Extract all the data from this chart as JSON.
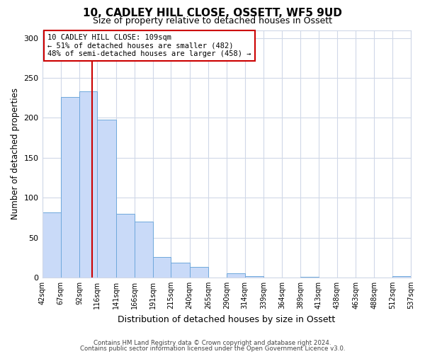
{
  "title": "10, CADLEY HILL CLOSE, OSSETT, WF5 9UD",
  "subtitle": "Size of property relative to detached houses in Ossett",
  "xlabel": "Distribution of detached houses by size in Ossett",
  "ylabel": "Number of detached properties",
  "bar_edges": [
    42,
    67,
    92,
    116,
    141,
    166,
    191,
    215,
    240,
    265,
    290,
    314,
    339,
    364,
    389,
    413,
    438,
    463,
    488,
    512,
    537
  ],
  "bar_heights": [
    82,
    226,
    233,
    198,
    80,
    70,
    26,
    19,
    13,
    0,
    5,
    2,
    0,
    0,
    1,
    0,
    0,
    0,
    0,
    2
  ],
  "bar_color": "#c9daf8",
  "bar_edge_color": "#6fa8dc",
  "property_line_x": 109,
  "property_line_color": "#cc0000",
  "annotation_line1": "10 CADLEY HILL CLOSE: 109sqm",
  "annotation_line2": "← 51% of detached houses are smaller (482)",
  "annotation_line3": "48% of semi-detached houses are larger (458) →",
  "annotation_box_color": "#ffffff",
  "annotation_box_edgecolor": "#cc0000",
  "ylim": [
    0,
    310
  ],
  "yticks": [
    0,
    50,
    100,
    150,
    200,
    250,
    300
  ],
  "xtick_labels": [
    "42sqm",
    "67sqm",
    "92sqm",
    "116sqm",
    "141sqm",
    "166sqm",
    "191sqm",
    "215sqm",
    "240sqm",
    "265sqm",
    "290sqm",
    "314sqm",
    "339sqm",
    "364sqm",
    "389sqm",
    "413sqm",
    "438sqm",
    "463sqm",
    "488sqm",
    "512sqm",
    "537sqm"
  ],
  "footer_line1": "Contains HM Land Registry data © Crown copyright and database right 2024.",
  "footer_line2": "Contains public sector information licensed under the Open Government Licence v3.0.",
  "grid_color": "#d0d8e8",
  "background_color": "#ffffff",
  "annotation_fontsize": 7.5,
  "title_fontsize": 11,
  "subtitle_fontsize": 9
}
